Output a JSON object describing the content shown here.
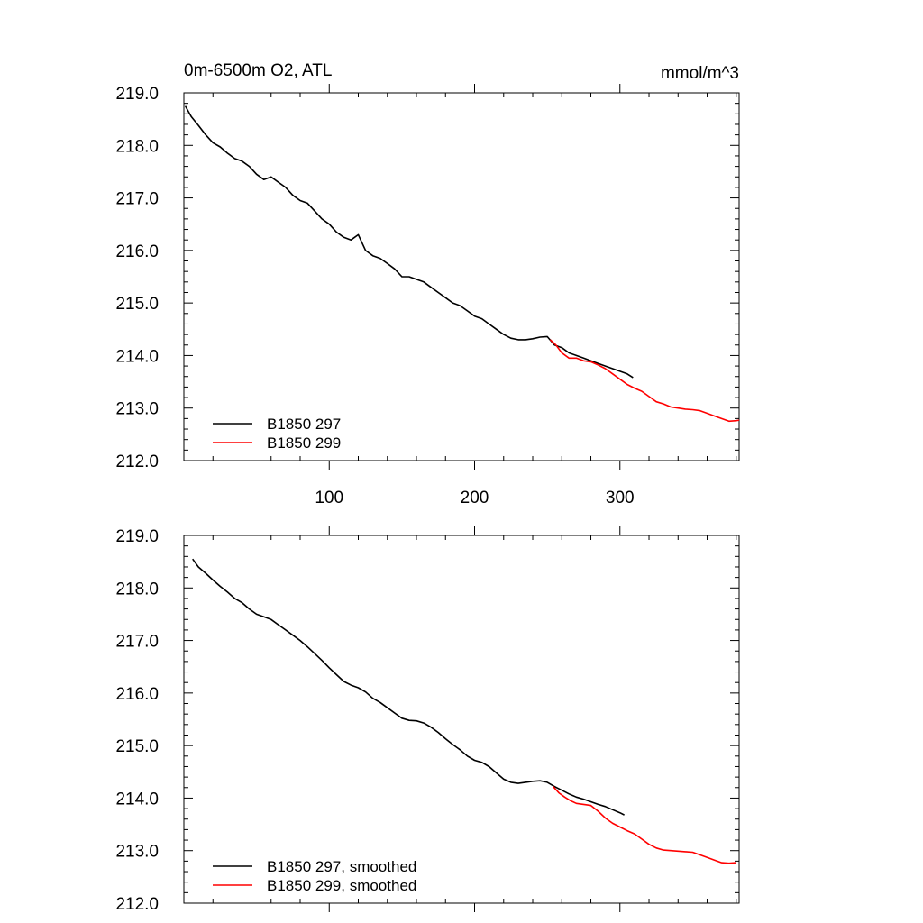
{
  "figure": {
    "title_left": "0m-6500m O2, ATL",
    "title_right": "mmol/m^3"
  },
  "chart_data": [
    {
      "type": "line",
      "panel": "top",
      "title": "0m-6500m O2, ATL",
      "units": "mmol/m^3",
      "xlim": [
        0,
        382
      ],
      "ylim": [
        212.0,
        219.0
      ],
      "x_ticks": [
        100,
        200,
        300
      ],
      "x_tick_labels": [
        "100",
        "200",
        "300"
      ],
      "x_tick_labels_visible": true,
      "y_ticks": [
        212.0,
        213.0,
        214.0,
        215.0,
        216.0,
        217.0,
        218.0,
        219.0
      ],
      "y_tick_labels": [
        "212.0",
        "213.0",
        "214.0",
        "215.0",
        "216.0",
        "217.0",
        "218.0",
        "219.0"
      ],
      "legend_position": "bottom-left",
      "colors": {
        "B1850 297": "#000000",
        "B1850 299": "#ff0000"
      },
      "series": [
        {
          "name": "B1850 297",
          "color": "#000000",
          "x": [
            1,
            5,
            10,
            15,
            20,
            25,
            30,
            35,
            40,
            45,
            50,
            55,
            60,
            65,
            70,
            75,
            80,
            85,
            90,
            95,
            100,
            105,
            110,
            115,
            120,
            125,
            130,
            135,
            140,
            145,
            150,
            155,
            160,
            165,
            170,
            175,
            180,
            185,
            190,
            195,
            200,
            205,
            210,
            215,
            220,
            225,
            230,
            235,
            240,
            245,
            250,
            255,
            260,
            265,
            270,
            275,
            280,
            285,
            290,
            295,
            300,
            305,
            309
          ],
          "y": [
            218.75,
            218.55,
            218.38,
            218.2,
            218.05,
            217.97,
            217.85,
            217.75,
            217.7,
            217.6,
            217.45,
            217.35,
            217.4,
            217.3,
            217.2,
            217.05,
            216.95,
            216.9,
            216.75,
            216.6,
            216.5,
            216.35,
            216.25,
            216.2,
            216.3,
            216.0,
            215.9,
            215.85,
            215.75,
            215.65,
            215.5,
            215.5,
            215.45,
            215.4,
            215.3,
            215.2,
            215.1,
            215.0,
            214.95,
            214.85,
            214.75,
            214.7,
            214.6,
            214.5,
            214.4,
            214.33,
            214.3,
            214.3,
            214.32,
            214.35,
            214.36,
            214.2,
            214.15,
            214.05,
            214.0,
            213.95,
            213.9,
            213.85,
            213.8,
            213.75,
            213.7,
            213.65,
            213.58
          ]
        },
        {
          "name": "B1850 299",
          "color": "#ff0000",
          "x": [
            252,
            256,
            260,
            265,
            270,
            275,
            280,
            285,
            290,
            295,
            300,
            305,
            310,
            315,
            320,
            325,
            330,
            335,
            340,
            345,
            350,
            355,
            360,
            365,
            370,
            375,
            380,
            382
          ],
          "y": [
            214.3,
            214.2,
            214.05,
            213.95,
            213.95,
            213.9,
            213.88,
            213.82,
            213.75,
            213.65,
            213.55,
            213.45,
            213.38,
            213.32,
            213.22,
            213.12,
            213.08,
            213.02,
            213.0,
            212.98,
            212.97,
            212.95,
            212.9,
            212.85,
            212.8,
            212.75,
            212.76,
            212.77
          ]
        }
      ]
    },
    {
      "type": "line",
      "panel": "bottom",
      "xlim": [
        0,
        382
      ],
      "ylim": [
        212.0,
        219.0
      ],
      "x_ticks": [
        100,
        200,
        300
      ],
      "x_tick_labels_visible": false,
      "y_ticks": [
        212.0,
        213.0,
        214.0,
        215.0,
        216.0,
        217.0,
        218.0,
        219.0
      ],
      "y_tick_labels": [
        "212.0",
        "213.0",
        "214.0",
        "215.0",
        "216.0",
        "217.0",
        "218.0",
        "219.0"
      ],
      "legend_position": "bottom-left",
      "colors": {
        "B1850 297, smoothed": "#000000",
        "B1850 299, smoothed": "#ff0000"
      },
      "series": [
        {
          "name": "B1850 297, smoothed",
          "color": "#000000",
          "x": [
            6,
            10,
            15,
            20,
            25,
            30,
            35,
            40,
            45,
            50,
            55,
            60,
            65,
            70,
            75,
            80,
            85,
            90,
            95,
            100,
            105,
            110,
            115,
            120,
            125,
            130,
            135,
            140,
            145,
            150,
            155,
            160,
            165,
            170,
            175,
            180,
            185,
            190,
            195,
            200,
            205,
            210,
            215,
            220,
            225,
            230,
            235,
            240,
            245,
            250,
            255,
            260,
            265,
            270,
            275,
            280,
            285,
            290,
            295,
            300,
            303
          ],
          "y": [
            218.55,
            218.4,
            218.28,
            218.15,
            218.03,
            217.92,
            217.8,
            217.72,
            217.6,
            217.5,
            217.45,
            217.4,
            217.3,
            217.2,
            217.1,
            217.0,
            216.88,
            216.75,
            216.62,
            216.48,
            216.35,
            216.22,
            216.15,
            216.1,
            216.02,
            215.9,
            215.82,
            215.72,
            215.62,
            215.52,
            215.48,
            215.47,
            215.43,
            215.35,
            215.25,
            215.13,
            215.02,
            214.92,
            214.8,
            214.72,
            214.68,
            214.6,
            214.48,
            214.36,
            214.3,
            214.28,
            214.3,
            214.32,
            214.33,
            214.3,
            214.22,
            214.15,
            214.08,
            214.02,
            213.98,
            213.93,
            213.88,
            213.84,
            213.78,
            213.72,
            213.68
          ]
        },
        {
          "name": "B1850 299, smoothed",
          "color": "#ff0000",
          "x": [
            254,
            258,
            262,
            266,
            270,
            275,
            280,
            285,
            290,
            295,
            300,
            305,
            310,
            315,
            320,
            325,
            330,
            335,
            340,
            345,
            350,
            355,
            360,
            365,
            370,
            375,
            380
          ],
          "y": [
            214.22,
            214.1,
            214.02,
            213.95,
            213.9,
            213.88,
            213.86,
            213.75,
            213.62,
            213.52,
            213.45,
            213.38,
            213.32,
            213.22,
            213.12,
            213.05,
            213.01,
            213.0,
            212.99,
            212.98,
            212.97,
            212.92,
            212.87,
            212.82,
            212.77,
            212.76,
            212.77
          ]
        }
      ]
    }
  ]
}
